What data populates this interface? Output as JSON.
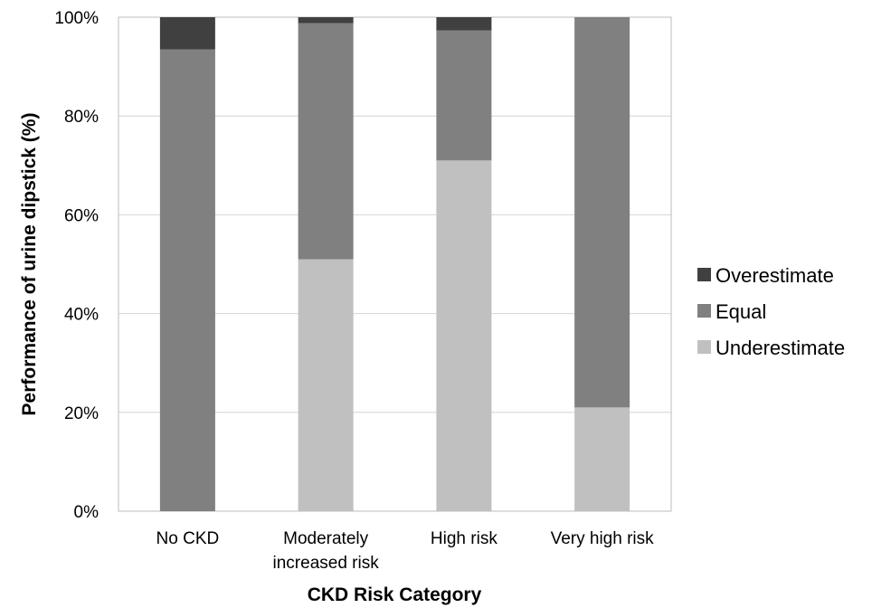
{
  "chart_data": {
    "type": "bar",
    "stacked": true,
    "categories": [
      [
        "No CKD"
      ],
      [
        "Moderately",
        "increased risk"
      ],
      [
        "High risk"
      ],
      [
        "Very high risk"
      ]
    ],
    "series": [
      {
        "name": "Underestimate",
        "color": "#c0c0c0",
        "values": [
          0,
          51,
          71,
          21
        ]
      },
      {
        "name": "Equal",
        "color": "#808080",
        "values": [
          93.5,
          47.8,
          26.3,
          79
        ]
      },
      {
        "name": "Overestimate",
        "color": "#404040",
        "values": [
          6.5,
          1.2,
          2.7,
          0
        ]
      }
    ],
    "legend_order": [
      "Overestimate",
      "Equal",
      "Underestimate"
    ],
    "xlabel": "CKD Risk Category",
    "ylabel": "Performance of urine dipstick (%)",
    "ylim": [
      0,
      100
    ],
    "yticks": [
      "0%",
      "20%",
      "40%",
      "60%",
      "80%",
      "100%"
    ],
    "grid": true,
    "legend_position": "right"
  }
}
